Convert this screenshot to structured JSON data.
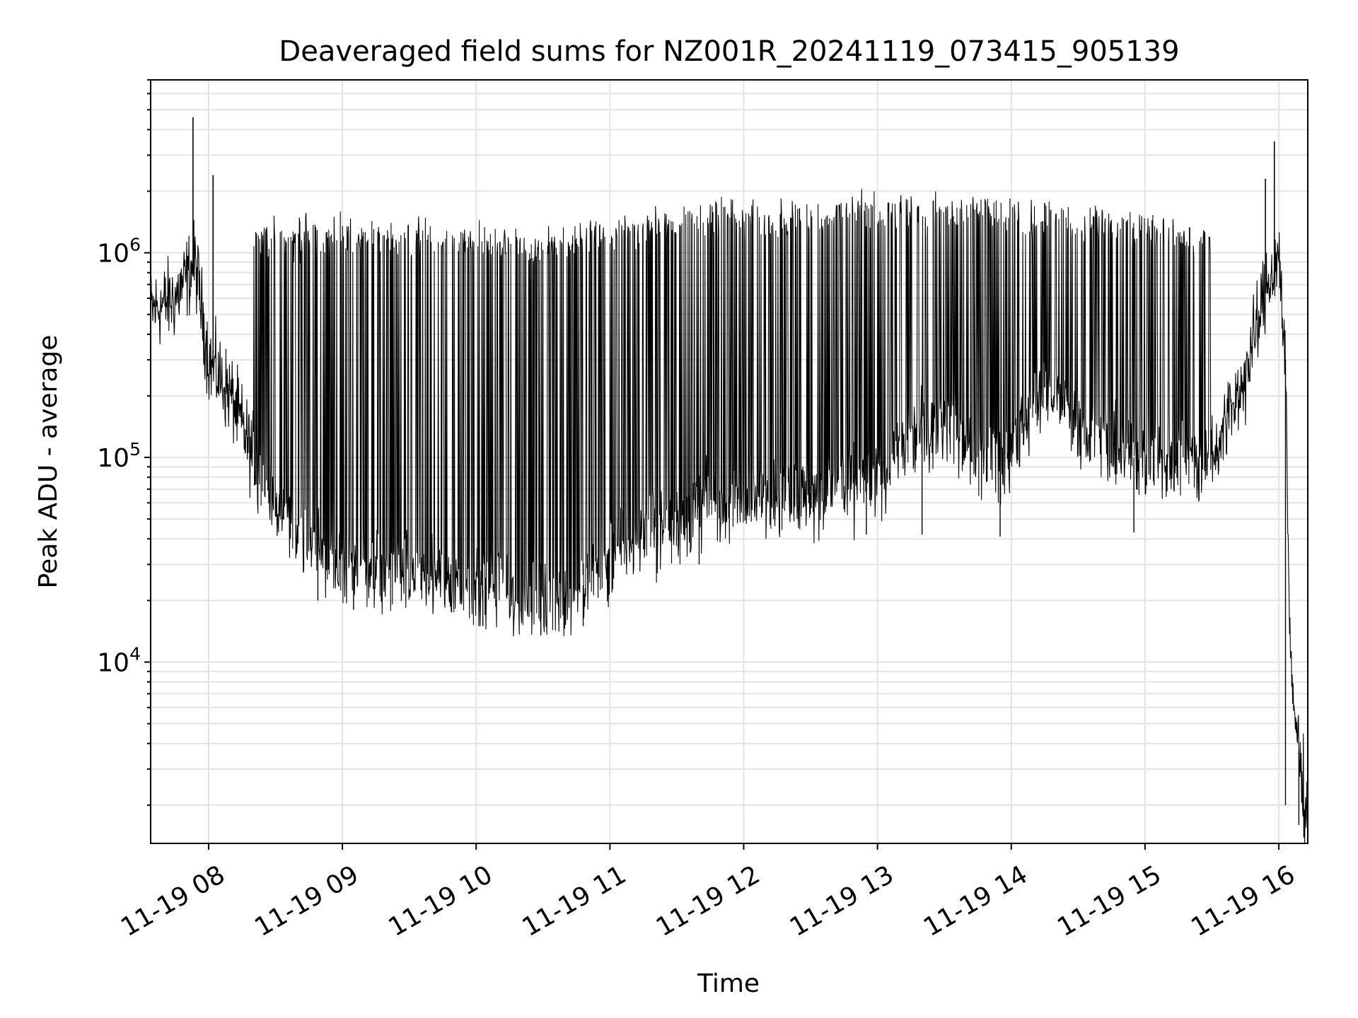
{
  "chart_data": {
    "type": "line",
    "title": "Deaveraged field sums for NZ001R_20241119_073415_905139",
    "xlabel": "Time",
    "ylabel": "Peak ADU - average",
    "yscale": "log",
    "grid": true,
    "x_range": [
      "2024-11-19 07:34",
      "2024-11-19 16:13"
    ],
    "y_range": [
      1300,
      7000000
    ],
    "x_ticks": [
      "11-19 08",
      "11-19 09",
      "11-19 10",
      "11-19 11",
      "11-19 12",
      "11-19 13",
      "11-19 14",
      "11-19 15",
      "11-19 16"
    ],
    "x_tick_times": [
      "2024-11-19 08:00",
      "2024-11-19 09:00",
      "2024-11-19 10:00",
      "2024-11-19 11:00",
      "2024-11-19 12:00",
      "2024-11-19 13:00",
      "2024-11-19 14:00",
      "2024-11-19 15:00",
      "2024-11-19 16:00"
    ],
    "y_ticks": [
      {
        "value": 10000,
        "base": "10",
        "exp": "4"
      },
      {
        "value": 100000,
        "base": "10",
        "exp": "5"
      },
      {
        "value": 1000000,
        "base": "10",
        "exp": "6"
      }
    ],
    "series": [
      {
        "color": "#000000",
        "low_envelope": [
          [
            "2024-11-19 07:34",
            520000
          ],
          [
            "2024-11-19 07:45",
            600000
          ],
          [
            "2024-11-19 07:54",
            900000
          ],
          [
            "2024-11-19 08:00",
            300000
          ],
          [
            "2024-11-19 08:10",
            200000
          ],
          [
            "2024-11-19 08:20",
            100000
          ],
          [
            "2024-11-19 08:30",
            55000
          ],
          [
            "2024-11-19 08:45",
            38000
          ],
          [
            "2024-11-19 09:00",
            30000
          ],
          [
            "2024-11-19 09:30",
            26000
          ],
          [
            "2024-11-19 10:00",
            23000
          ],
          [
            "2024-11-19 10:20",
            20000
          ],
          [
            "2024-11-19 10:30",
            19000
          ],
          [
            "2024-11-19 10:45",
            22000
          ],
          [
            "2024-11-19 11:00",
            32000
          ],
          [
            "2024-11-19 11:20",
            45000
          ],
          [
            "2024-11-19 11:45",
            60000
          ],
          [
            "2024-11-19 12:00",
            62000
          ],
          [
            "2024-11-19 12:30",
            65000
          ],
          [
            "2024-11-19 13:00",
            80000
          ],
          [
            "2024-11-19 13:20",
            140000
          ],
          [
            "2024-11-19 13:30",
            150000
          ],
          [
            "2024-11-19 13:45",
            100000
          ],
          [
            "2024-11-19 14:00",
            110000
          ],
          [
            "2024-11-19 14:15",
            220000
          ],
          [
            "2024-11-19 14:30",
            150000
          ],
          [
            "2024-11-19 14:45",
            110000
          ],
          [
            "2024-11-19 15:00",
            95000
          ],
          [
            "2024-11-19 15:30",
            100000
          ],
          [
            "2024-11-19 15:45",
            250000
          ],
          [
            "2024-11-19 15:55",
            700000
          ],
          [
            "2024-11-19 16:00",
            1000000
          ],
          [
            "2024-11-19 16:03",
            300000
          ],
          [
            "2024-11-19 16:05",
            10000
          ],
          [
            "2024-11-19 16:08",
            4500
          ],
          [
            "2024-11-19 16:12",
            2000
          ]
        ],
        "high_envelope": [
          [
            "2024-11-19 08:20",
            1200000
          ],
          [
            "2024-11-19 09:00",
            1200000
          ],
          [
            "2024-11-19 10:00",
            1150000
          ],
          [
            "2024-11-19 10:30",
            1050000
          ],
          [
            "2024-11-19 11:00",
            1250000
          ],
          [
            "2024-11-19 11:45",
            1450000
          ],
          [
            "2024-11-19 12:30",
            1500000
          ],
          [
            "2024-11-19 13:30",
            1600000
          ],
          [
            "2024-11-19 14:30",
            1400000
          ],
          [
            "2024-11-19 15:30",
            1200000
          ]
        ],
        "peaks": [
          [
            "2024-11-19 07:53",
            4600000
          ],
          [
            "2024-11-19 08:02",
            2400000
          ],
          [
            "2024-11-19 12:25",
            1650000
          ],
          [
            "2024-11-19 13:25",
            1800000
          ],
          [
            "2024-11-19 14:15",
            1750000
          ],
          [
            "2024-11-19 15:54",
            2300000
          ],
          [
            "2024-11-19 15:58",
            3500000
          ]
        ],
        "dropouts": [
          [
            "2024-11-19 08:49",
            20000
          ],
          [
            "2024-11-19 09:05",
            18000
          ],
          [
            "2024-11-19 10:03",
            15000
          ],
          [
            "2024-11-19 10:29",
            13500
          ],
          [
            "2024-11-19 10:48",
            15000
          ],
          [
            "2024-11-19 11:40",
            30000
          ],
          [
            "2024-11-19 12:55",
            42000
          ],
          [
            "2024-11-19 13:20",
            42000
          ],
          [
            "2024-11-19 13:55",
            41000
          ],
          [
            "2024-11-19 14:55",
            43000
          ],
          [
            "2024-11-19 16:03",
            2000
          ],
          [
            "2024-11-19 16:09",
            1600
          ]
        ]
      }
    ]
  }
}
